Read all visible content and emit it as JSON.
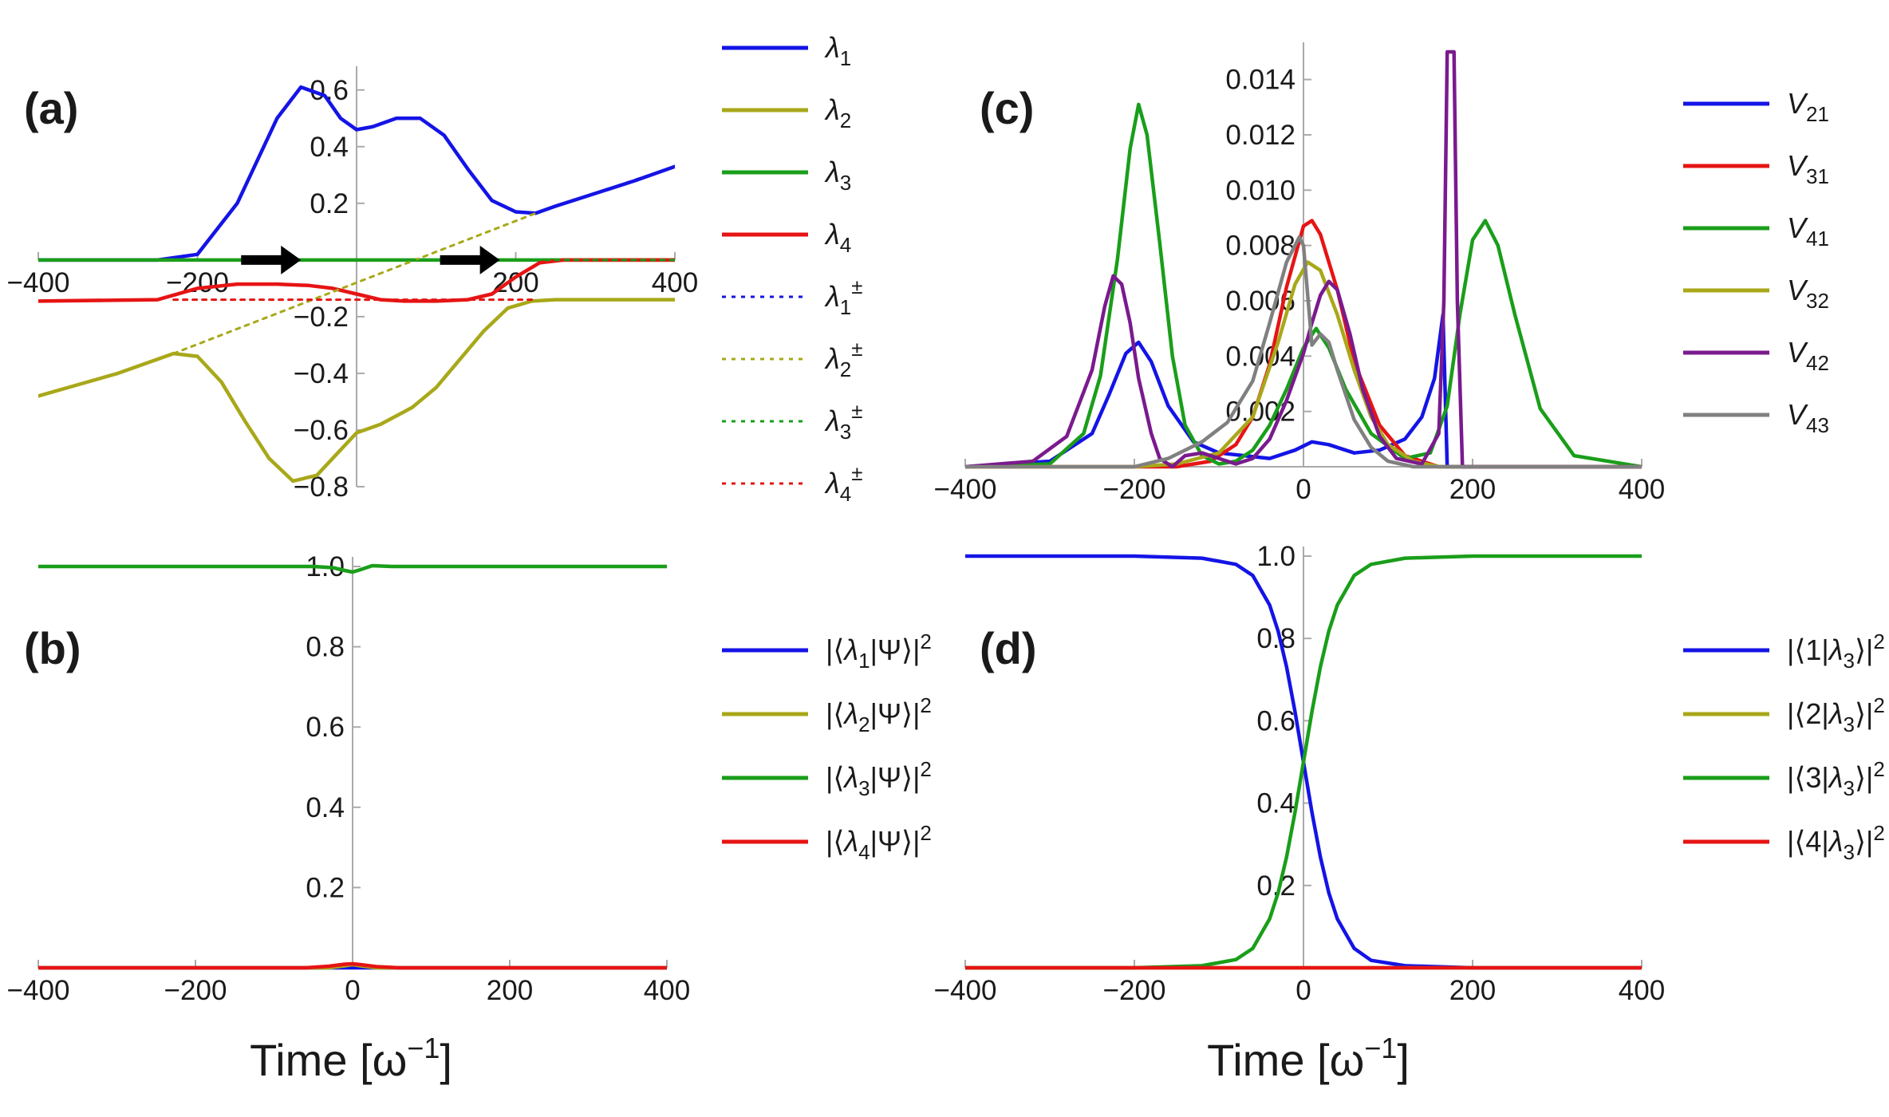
{
  "figure": {
    "xlabel_text": "Time [ω",
    "xlabel_sup": "−1",
    "xlabel_close": "]"
  },
  "colors": {
    "blue": "#1414e6",
    "olive": "#a8a81a",
    "green": "#1a9e1a",
    "red": "#e61414",
    "purple": "#7a1a8e",
    "gray": "#808080"
  },
  "chart_data": [
    {
      "id": "a",
      "panel_label": "(a)",
      "type": "line",
      "xlim": [
        -400,
        400
      ],
      "ylim": [
        -0.8,
        0.65
      ],
      "xticks": [
        -400,
        -200,
        200,
        400
      ],
      "yticks": [
        0.6,
        0.4,
        0.2,
        -0.2,
        -0.4,
        -0.6,
        -0.8
      ],
      "ytick_labels": [
        "0.6",
        "0.4",
        "0.2",
        "−0.2",
        "−0.4",
        "−0.6",
        "−0.8"
      ],
      "xtick_labels": [
        "−400",
        "−200",
        "200",
        "400"
      ],
      "arrows_at": [
        -100,
        150
      ],
      "series": [
        {
          "name": "λ1",
          "label_base": "λ",
          "label_sub": "1",
          "label_sup": "",
          "color": "#1414e6",
          "dashed": false,
          "x": [
            -400,
            -250,
            -200,
            -150,
            -100,
            -70,
            -40,
            -20,
            0,
            20,
            50,
            80,
            110,
            140,
            170,
            200,
            225,
            250,
            300,
            350,
            400
          ],
          "y": [
            0,
            0,
            0.02,
            0.2,
            0.5,
            0.61,
            0.58,
            0.5,
            0.46,
            0.47,
            0.5,
            0.5,
            0.44,
            0.32,
            0.21,
            0.17,
            0.165,
            0.19,
            0.235,
            0.28,
            0.33
          ]
        },
        {
          "name": "λ2",
          "label_base": "λ",
          "label_sub": "2",
          "label_sup": "",
          "color": "#a8a81a",
          "dashed": false,
          "x": [
            -400,
            -300,
            -230,
            -200,
            -170,
            -140,
            -110,
            -80,
            -50,
            -20,
            0,
            30,
            70,
            100,
            130,
            160,
            190,
            220,
            250,
            300,
            400
          ],
          "y": [
            -0.48,
            -0.4,
            -0.33,
            -0.34,
            -0.43,
            -0.57,
            -0.7,
            -0.78,
            -0.76,
            -0.67,
            -0.61,
            -0.58,
            -0.52,
            -0.45,
            -0.35,
            -0.25,
            -0.17,
            -0.145,
            -0.14,
            -0.14,
            -0.14
          ]
        },
        {
          "name": "λ3",
          "label_base": "λ",
          "label_sub": "3",
          "label_sup": "",
          "color": "#1a9e1a",
          "dashed": false,
          "x": [
            -400,
            -200,
            0,
            200,
            400
          ],
          "y": [
            0,
            0,
            0,
            0,
            0
          ]
        },
        {
          "name": "λ4",
          "label_base": "λ",
          "label_sub": "4",
          "label_sup": "",
          "color": "#e61414",
          "dashed": false,
          "x": [
            -400,
            -250,
            -200,
            -150,
            -100,
            -60,
            -30,
            0,
            30,
            60,
            100,
            140,
            170,
            200,
            230,
            260,
            400
          ],
          "y": [
            -0.145,
            -0.14,
            -0.1,
            -0.085,
            -0.085,
            -0.09,
            -0.1,
            -0.12,
            -0.14,
            -0.145,
            -0.145,
            -0.14,
            -0.12,
            -0.06,
            -0.01,
            0,
            0
          ]
        },
        {
          "name": "λ1±",
          "label_base": "λ",
          "label_sub": "1",
          "label_sup": "±",
          "color": "#1414e6",
          "dashed": true,
          "x": [
            225,
            400
          ],
          "y": [
            0.165,
            0.33
          ]
        },
        {
          "name": "λ2±",
          "label_base": "λ",
          "label_sub": "2",
          "label_sup": "±",
          "color": "#a8a81a",
          "dashed": true,
          "x": [
            -230,
            225
          ],
          "y": [
            -0.33,
            0.165
          ]
        },
        {
          "name": "λ3±",
          "label_base": "λ",
          "label_sub": "3",
          "label_sup": "±",
          "color": "#1a9e1a",
          "dashed": true,
          "x": [
            -400,
            400
          ],
          "y": [
            0,
            0
          ]
        },
        {
          "name": "λ4±",
          "label_base": "λ",
          "label_sub": "4",
          "label_sup": "±",
          "color": "#e61414",
          "dashed": true,
          "x": [
            -230,
            225
          ],
          "y": [
            -0.14,
            -0.14
          ]
        }
      ]
    },
    {
      "id": "b",
      "panel_label": "(b)",
      "type": "line",
      "xlim": [
        -400,
        400
      ],
      "ylim": [
        0,
        1.0
      ],
      "xticks": [
        -400,
        -200,
        0,
        200,
        400
      ],
      "yticks": [
        0.2,
        0.4,
        0.6,
        0.8,
        1.0
      ],
      "ytick_labels": [
        "0.2",
        "0.4",
        "0.6",
        "0.8",
        "1.0"
      ],
      "xtick_labels": [
        "−400",
        "−200",
        "0",
        "200",
        "400"
      ],
      "series": [
        {
          "name": "|⟨λ1|Ψ⟩|²",
          "label_pre": "|⟨",
          "label_base": "λ",
          "label_sub": "1",
          "label_post": "|Ψ⟩|",
          "label_sup": "2",
          "color": "#1414e6",
          "x": [
            -400,
            400
          ],
          "y": [
            0,
            0
          ]
        },
        {
          "name": "|⟨λ2|Ψ⟩|²",
          "label_pre": "|⟨",
          "label_base": "λ",
          "label_sub": "2",
          "label_post": "|Ψ⟩|",
          "label_sup": "2",
          "color": "#a8a81a",
          "x": [
            -400,
            -30,
            -10,
            0,
            10,
            30,
            400
          ],
          "y": [
            0,
            0,
            0.005,
            0.008,
            0.005,
            0,
            0
          ]
        },
        {
          "name": "|⟨λ3|Ψ⟩|²",
          "label_pre": "|⟨",
          "label_base": "λ",
          "label_sub": "3",
          "label_post": "|Ψ⟩|",
          "label_sup": "2",
          "color": "#1a9e1a",
          "x": [
            -400,
            -50,
            -25,
            -10,
            0,
            10,
            25,
            50,
            400
          ],
          "y": [
            1.0,
            1.0,
            0.997,
            0.99,
            0.986,
            0.992,
            1.002,
            1.0,
            1.0
          ]
        },
        {
          "name": "|⟨λ4|Ψ⟩|²",
          "label_pre": "|⟨",
          "label_base": "λ",
          "label_sub": "4",
          "label_post": "|Ψ⟩|",
          "label_sup": "2",
          "color": "#e61414",
          "x": [
            -400,
            -60,
            -30,
            -10,
            0,
            10,
            30,
            60,
            400
          ],
          "y": [
            0,
            0,
            0.004,
            0.009,
            0.01,
            0.008,
            0.003,
            0,
            0
          ]
        }
      ]
    },
    {
      "id": "c",
      "panel_label": "(c)",
      "type": "line",
      "xlim": [
        -400,
        400
      ],
      "ylim": [
        0,
        0.015
      ],
      "xticks": [
        -400,
        -200,
        0,
        200,
        400
      ],
      "yticks": [
        0.002,
        0.004,
        0.006,
        0.008,
        0.01,
        0.012,
        0.014
      ],
      "ytick_labels": [
        "0.002",
        "0.004",
        "0.006",
        "0.008",
        "0.010",
        "0.012",
        "0.014"
      ],
      "xtick_labels": [
        "−400",
        "−200",
        "0",
        "200",
        "400"
      ],
      "series": [
        {
          "name": "V21",
          "label_base": "V",
          "label_sub": "21",
          "color": "#1414e6",
          "x": [
            -400,
            -300,
            -250,
            -230,
            -210,
            -195,
            -180,
            -160,
            -130,
            -100,
            -70,
            -40,
            -10,
            10,
            30,
            60,
            90,
            120,
            140,
            155,
            165,
            170,
            400
          ],
          "y": [
            0,
            0.0002,
            0.0012,
            0.0026,
            0.0041,
            0.0045,
            0.0038,
            0.0022,
            0.0009,
            0.0005,
            0.0004,
            0.0003,
            0.0006,
            0.0009,
            0.0008,
            0.0005,
            0.0006,
            0.001,
            0.0018,
            0.0032,
            0.0055,
            0,
            0
          ]
        },
        {
          "name": "V31",
          "label_base": "V",
          "label_sub": "31",
          "color": "#e61414",
          "x": [
            -400,
            -150,
            -110,
            -80,
            -60,
            -40,
            -20,
            0,
            10,
            20,
            40,
            60,
            90,
            120,
            160,
            400
          ],
          "y": [
            0,
            0,
            0.0002,
            0.0008,
            0.0018,
            0.0037,
            0.0065,
            0.0087,
            0.0089,
            0.0084,
            0.0064,
            0.0038,
            0.0015,
            0.0004,
            0,
            0
          ]
        },
        {
          "name": "V41",
          "label_base": "V",
          "label_sub": "41",
          "color": "#1a9e1a",
          "x": [
            -400,
            -300,
            -260,
            -240,
            -220,
            -205,
            -195,
            -185,
            -170,
            -155,
            -140,
            -120,
            -100,
            -80,
            -60,
            -40,
            -20,
            0,
            15,
            30,
            50,
            80,
            120,
            150,
            170,
            185,
            200,
            215,
            230,
            250,
            280,
            320,
            400
          ],
          "y": [
            0,
            0.0001,
            0.0012,
            0.0033,
            0.0075,
            0.0115,
            0.0131,
            0.012,
            0.0081,
            0.004,
            0.0015,
            0.0004,
            0.0001,
            0.0002,
            0.0006,
            0.0015,
            0.0028,
            0.0043,
            0.005,
            0.0043,
            0.0028,
            0.0012,
            0.0003,
            0.0005,
            0.0022,
            0.0055,
            0.0082,
            0.0089,
            0.008,
            0.0055,
            0.0021,
            0.0004,
            0
          ]
        },
        {
          "name": "V32",
          "label_base": "V",
          "label_sub": "32",
          "color": "#a8a81a",
          "x": [
            -400,
            -200,
            -150,
            -100,
            -60,
            -30,
            -10,
            5,
            20,
            40,
            60,
            80,
            100,
            130,
            160,
            400
          ],
          "y": [
            0,
            0,
            0.0001,
            0.0005,
            0.0018,
            0.0045,
            0.0066,
            0.0074,
            0.0071,
            0.0055,
            0.0035,
            0.0018,
            0.0008,
            0.0002,
            0,
            0
          ]
        },
        {
          "name": "V42",
          "label_base": "V",
          "label_sub": "42",
          "color": "#7a1a8e",
          "x": [
            -400,
            -320,
            -280,
            -250,
            -235,
            -225,
            -215,
            -205,
            -195,
            -180,
            -170,
            -155,
            -140,
            -120,
            -100,
            -80,
            -60,
            -40,
            -20,
            0,
            10,
            20,
            30,
            40,
            55,
            70,
            90,
            110,
            140,
            160,
            166,
            170,
            172,
            175,
            178,
            182,
            188,
            400
          ],
          "y": [
            0,
            0.0002,
            0.0011,
            0.0035,
            0.0058,
            0.0069,
            0.0066,
            0.0052,
            0.0032,
            0.0012,
            0.0003,
            0,
            0.0004,
            0.0005,
            0.0003,
            0.0001,
            0.0003,
            0.001,
            0.0024,
            0.0041,
            0.0052,
            0.0062,
            0.0067,
            0.0064,
            0.0048,
            0.0028,
            0.0011,
            0.0003,
            0.0001,
            0.0012,
            0.006,
            0.015,
            0.015,
            0.015,
            0.015,
            0.006,
            0,
            0
          ]
        },
        {
          "name": "V43",
          "label_base": "V",
          "label_sub": "43",
          "color": "#808080",
          "x": [
            -400,
            -200,
            -160,
            -120,
            -90,
            -60,
            -40,
            -20,
            -5,
            0,
            5,
            10,
            20,
            30,
            40,
            60,
            80,
            100,
            130,
            160,
            400
          ],
          "y": [
            0,
            0,
            0.0003,
            0.0009,
            0.0016,
            0.0031,
            0.0052,
            0.0074,
            0.0083,
            0.008,
            0.0062,
            0.0044,
            0.0048,
            0.0045,
            0.0035,
            0.0017,
            0.0007,
            0.0002,
            0,
            0,
            0
          ]
        }
      ]
    },
    {
      "id": "d",
      "panel_label": "(d)",
      "type": "line",
      "xlim": [
        -400,
        400
      ],
      "ylim": [
        0,
        1.0
      ],
      "xticks": [
        -400,
        -200,
        0,
        200,
        400
      ],
      "yticks": [
        0.2,
        0.4,
        0.6,
        0.8,
        1.0
      ],
      "ytick_labels": [
        "0.2",
        "0.4",
        "0.6",
        "0.8",
        "1.0"
      ],
      "xtick_labels": [
        "−400",
        "−200",
        "0",
        "200",
        "400"
      ],
      "series": [
        {
          "name": "|⟨1|λ3⟩|²",
          "label_pre": "|⟨1|",
          "label_base": "λ",
          "label_sub": "3",
          "label_post": "⟩|",
          "label_sup": "2",
          "color": "#1414e6",
          "x": [
            -400,
            -200,
            -120,
            -80,
            -60,
            -40,
            -30,
            -20,
            -10,
            0,
            10,
            20,
            30,
            40,
            60,
            80,
            120,
            200,
            400
          ],
          "y": [
            1.0,
            1.0,
            0.995,
            0.98,
            0.953,
            0.881,
            0.818,
            0.731,
            0.622,
            0.5,
            0.378,
            0.269,
            0.182,
            0.119,
            0.047,
            0.018,
            0.005,
            0,
            0
          ]
        },
        {
          "name": "|⟨2|λ3⟩|²",
          "label_pre": "|⟨2|",
          "label_base": "λ",
          "label_sub": "3",
          "label_post": "⟩|",
          "label_sup": "2",
          "color": "#a8a81a",
          "x": [
            -400,
            400
          ],
          "y": [
            0,
            0
          ]
        },
        {
          "name": "|⟨3|λ3⟩|²",
          "label_pre": "|⟨3|",
          "label_base": "λ",
          "label_sub": "3",
          "label_post": "⟩|",
          "label_sup": "2",
          "color": "#1a9e1a",
          "x": [
            -400,
            -200,
            -120,
            -80,
            -60,
            -40,
            -30,
            -20,
            -10,
            0,
            10,
            20,
            30,
            40,
            60,
            80,
            120,
            200,
            400
          ],
          "y": [
            0,
            0,
            0.005,
            0.02,
            0.047,
            0.119,
            0.182,
            0.269,
            0.378,
            0.5,
            0.622,
            0.731,
            0.818,
            0.881,
            0.953,
            0.98,
            0.995,
            1.0,
            1.0
          ]
        },
        {
          "name": "|⟨4|λ3⟩|²",
          "label_pre": "|⟨4|",
          "label_base": "λ",
          "label_sub": "3",
          "label_post": "⟩|",
          "label_sup": "2",
          "color": "#e61414",
          "x": [
            -400,
            400
          ],
          "y": [
            0,
            0
          ]
        }
      ]
    }
  ]
}
